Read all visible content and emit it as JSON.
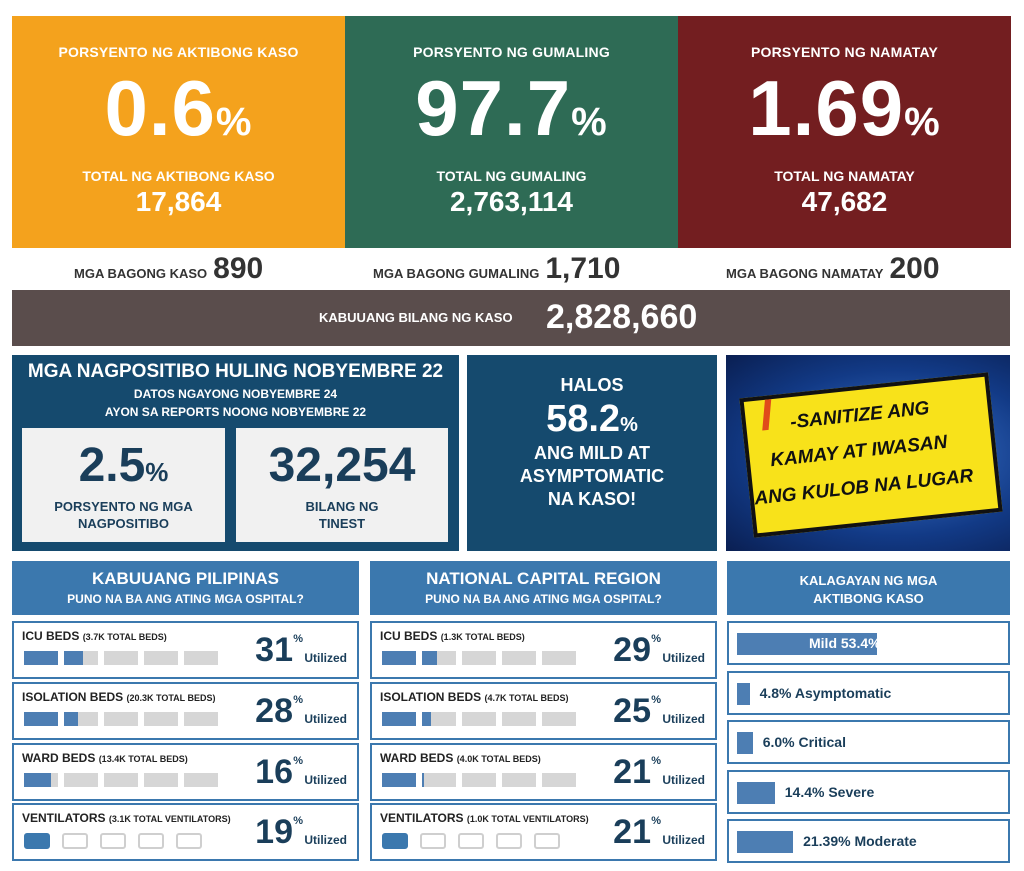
{
  "top": {
    "active": {
      "title": "PORSYENTO NG AKTIBONG KASO",
      "pct": "0.6",
      "pct_sign": "%",
      "label": "TOTAL NG AKTIBONG KASO",
      "total": "17,864",
      "color": "#f4a21d"
    },
    "recovered": {
      "title": "PORSYENTO NG GUMALING",
      "pct": "97.7",
      "pct_sign": "%",
      "label": "TOTAL NG GUMALING",
      "total": "2,763,114",
      "color": "#2e6b55"
    },
    "deaths": {
      "title": "PORSYENTO NG NAMATAY",
      "pct": "1.69",
      "pct_sign": "%",
      "label": "TOTAL NG NAMATAY",
      "total": "47,682",
      "color": "#731e20"
    }
  },
  "new": {
    "cases_label": "MGA BAGONG KASO",
    "cases": "890",
    "recovered_label": "MGA BAGONG GUMALING",
    "recovered": "1,710",
    "deaths_label": "MGA BAGONG NAMATAY",
    "deaths": "200"
  },
  "total": {
    "label": "KABUUANG BILANG NG KASO",
    "value": "2,828,660"
  },
  "positives": {
    "title": "MGA NAGPOSITIBO HULING NOBYEMBRE 22",
    "sub1": "DATOS NGAYONG NOBYEMBRE 24",
    "sub2": "AYON SA REPORTS NOONG NOBYEMBRE 22",
    "rate": "2.5",
    "rate_sign": "%",
    "rate_label1": "PORSYENTO NG MGA",
    "rate_label2": "NAGPOSITIBO",
    "tested": "32,254",
    "tested_label1": "BILANG NG",
    "tested_label2": "TINEST"
  },
  "mild": {
    "l1": "HALOS",
    "pct": "58.2",
    "pct_sign": "%",
    "l2": "ANG MILD AT",
    "l3": "ASYMPTOMATIC",
    "l4": "NA KASO!"
  },
  "banner": {
    "line1": "-SANITIZE ANG",
    "line2": "KAMAY AT IWASAN",
    "line3": "ANG KULOB NA LUGAR",
    "initial": "I"
  },
  "ph": {
    "title": "KABUUANG PILIPINAS",
    "subtitle": "PUNO NA BA ANG ATING MGA OSPITAL?",
    "rows": [
      {
        "name": "ICU BEDS",
        "total": "(3.7K TOTAL BEDS)",
        "value": "31",
        "util": 0.31
      },
      {
        "name": "ISOLATION BEDS",
        "total": "(20.3K TOTAL BEDS)",
        "value": "28",
        "util": 0.28
      },
      {
        "name": "WARD BEDS",
        "total": "(13.4K TOTAL BEDS)",
        "value": "16",
        "util": 0.16
      },
      {
        "name": "VENTILATORS",
        "total": "(3.1K TOTAL VENTILATORS)",
        "value": "19",
        "util": 0.19
      }
    ]
  },
  "ncr": {
    "title": "NATIONAL CAPITAL REGION",
    "subtitle": "PUNO NA BA ANG ATING MGA OSPITAL?",
    "rows": [
      {
        "name": "ICU BEDS",
        "total": "(1.3K TOTAL BEDS)",
        "value": "29",
        "util": 0.29
      },
      {
        "name": "ISOLATION BEDS",
        "total": "(4.7K TOTAL BEDS)",
        "value": "25",
        "util": 0.25
      },
      {
        "name": "WARD BEDS",
        "total": "(4.0K TOTAL BEDS)",
        "value": "21",
        "util": 0.21
      },
      {
        "name": "VENTILATORS",
        "total": "(1.0K TOTAL VENTILATORS)",
        "value": "21",
        "util": 0.21
      }
    ]
  },
  "pct_symbol": "%",
  "utilized": "Utilized",
  "status": {
    "title1": "KALAGAYAN NG MGA",
    "title2": "AKTIBONG KASO",
    "rows": [
      {
        "label": "Mild 53.4%",
        "value": 53.4
      },
      {
        "label": "4.8% Asymptomatic",
        "value": 4.8
      },
      {
        "label": "6.0% Critical",
        "value": 6.0
      },
      {
        "label": "14.4% Severe",
        "value": 14.4
      },
      {
        "label": "21.39% Moderate",
        "value": 21.39
      }
    ]
  }
}
